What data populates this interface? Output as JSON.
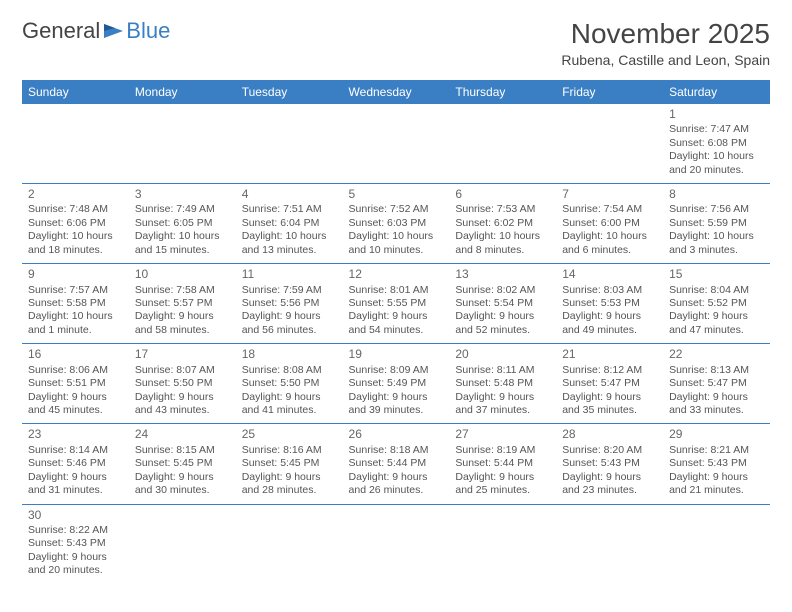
{
  "brand": {
    "part1": "General",
    "part2": "Blue"
  },
  "title": {
    "month": "November 2025",
    "location": "Rubena, Castille and Leon, Spain"
  },
  "dayHeaders": [
    "Sunday",
    "Monday",
    "Tuesday",
    "Wednesday",
    "Thursday",
    "Friday",
    "Saturday"
  ],
  "colors": {
    "headerBg": "#3a7fc4",
    "headerText": "#ffffff",
    "ruleColor": "#3a7fc4",
    "bodyText": "#555555",
    "titleText": "#444444"
  },
  "weeks": [
    [
      {
        "day": "",
        "sunrise": "",
        "sunset": "",
        "daylight": ""
      },
      {
        "day": "",
        "sunrise": "",
        "sunset": "",
        "daylight": ""
      },
      {
        "day": "",
        "sunrise": "",
        "sunset": "",
        "daylight": ""
      },
      {
        "day": "",
        "sunrise": "",
        "sunset": "",
        "daylight": ""
      },
      {
        "day": "",
        "sunrise": "",
        "sunset": "",
        "daylight": ""
      },
      {
        "day": "",
        "sunrise": "",
        "sunset": "",
        "daylight": ""
      },
      {
        "day": "1",
        "sunrise": "Sunrise: 7:47 AM",
        "sunset": "Sunset: 6:08 PM",
        "daylight": "Daylight: 10 hours and 20 minutes."
      }
    ],
    [
      {
        "day": "2",
        "sunrise": "Sunrise: 7:48 AM",
        "sunset": "Sunset: 6:06 PM",
        "daylight": "Daylight: 10 hours and 18 minutes."
      },
      {
        "day": "3",
        "sunrise": "Sunrise: 7:49 AM",
        "sunset": "Sunset: 6:05 PM",
        "daylight": "Daylight: 10 hours and 15 minutes."
      },
      {
        "day": "4",
        "sunrise": "Sunrise: 7:51 AM",
        "sunset": "Sunset: 6:04 PM",
        "daylight": "Daylight: 10 hours and 13 minutes."
      },
      {
        "day": "5",
        "sunrise": "Sunrise: 7:52 AM",
        "sunset": "Sunset: 6:03 PM",
        "daylight": "Daylight: 10 hours and 10 minutes."
      },
      {
        "day": "6",
        "sunrise": "Sunrise: 7:53 AM",
        "sunset": "Sunset: 6:02 PM",
        "daylight": "Daylight: 10 hours and 8 minutes."
      },
      {
        "day": "7",
        "sunrise": "Sunrise: 7:54 AM",
        "sunset": "Sunset: 6:00 PM",
        "daylight": "Daylight: 10 hours and 6 minutes."
      },
      {
        "day": "8",
        "sunrise": "Sunrise: 7:56 AM",
        "sunset": "Sunset: 5:59 PM",
        "daylight": "Daylight: 10 hours and 3 minutes."
      }
    ],
    [
      {
        "day": "9",
        "sunrise": "Sunrise: 7:57 AM",
        "sunset": "Sunset: 5:58 PM",
        "daylight": "Daylight: 10 hours and 1 minute."
      },
      {
        "day": "10",
        "sunrise": "Sunrise: 7:58 AM",
        "sunset": "Sunset: 5:57 PM",
        "daylight": "Daylight: 9 hours and 58 minutes."
      },
      {
        "day": "11",
        "sunrise": "Sunrise: 7:59 AM",
        "sunset": "Sunset: 5:56 PM",
        "daylight": "Daylight: 9 hours and 56 minutes."
      },
      {
        "day": "12",
        "sunrise": "Sunrise: 8:01 AM",
        "sunset": "Sunset: 5:55 PM",
        "daylight": "Daylight: 9 hours and 54 minutes."
      },
      {
        "day": "13",
        "sunrise": "Sunrise: 8:02 AM",
        "sunset": "Sunset: 5:54 PM",
        "daylight": "Daylight: 9 hours and 52 minutes."
      },
      {
        "day": "14",
        "sunrise": "Sunrise: 8:03 AM",
        "sunset": "Sunset: 5:53 PM",
        "daylight": "Daylight: 9 hours and 49 minutes."
      },
      {
        "day": "15",
        "sunrise": "Sunrise: 8:04 AM",
        "sunset": "Sunset: 5:52 PM",
        "daylight": "Daylight: 9 hours and 47 minutes."
      }
    ],
    [
      {
        "day": "16",
        "sunrise": "Sunrise: 8:06 AM",
        "sunset": "Sunset: 5:51 PM",
        "daylight": "Daylight: 9 hours and 45 minutes."
      },
      {
        "day": "17",
        "sunrise": "Sunrise: 8:07 AM",
        "sunset": "Sunset: 5:50 PM",
        "daylight": "Daylight: 9 hours and 43 minutes."
      },
      {
        "day": "18",
        "sunrise": "Sunrise: 8:08 AM",
        "sunset": "Sunset: 5:50 PM",
        "daylight": "Daylight: 9 hours and 41 minutes."
      },
      {
        "day": "19",
        "sunrise": "Sunrise: 8:09 AM",
        "sunset": "Sunset: 5:49 PM",
        "daylight": "Daylight: 9 hours and 39 minutes."
      },
      {
        "day": "20",
        "sunrise": "Sunrise: 8:11 AM",
        "sunset": "Sunset: 5:48 PM",
        "daylight": "Daylight: 9 hours and 37 minutes."
      },
      {
        "day": "21",
        "sunrise": "Sunrise: 8:12 AM",
        "sunset": "Sunset: 5:47 PM",
        "daylight": "Daylight: 9 hours and 35 minutes."
      },
      {
        "day": "22",
        "sunrise": "Sunrise: 8:13 AM",
        "sunset": "Sunset: 5:47 PM",
        "daylight": "Daylight: 9 hours and 33 minutes."
      }
    ],
    [
      {
        "day": "23",
        "sunrise": "Sunrise: 8:14 AM",
        "sunset": "Sunset: 5:46 PM",
        "daylight": "Daylight: 9 hours and 31 minutes."
      },
      {
        "day": "24",
        "sunrise": "Sunrise: 8:15 AM",
        "sunset": "Sunset: 5:45 PM",
        "daylight": "Daylight: 9 hours and 30 minutes."
      },
      {
        "day": "25",
        "sunrise": "Sunrise: 8:16 AM",
        "sunset": "Sunset: 5:45 PM",
        "daylight": "Daylight: 9 hours and 28 minutes."
      },
      {
        "day": "26",
        "sunrise": "Sunrise: 8:18 AM",
        "sunset": "Sunset: 5:44 PM",
        "daylight": "Daylight: 9 hours and 26 minutes."
      },
      {
        "day": "27",
        "sunrise": "Sunrise: 8:19 AM",
        "sunset": "Sunset: 5:44 PM",
        "daylight": "Daylight: 9 hours and 25 minutes."
      },
      {
        "day": "28",
        "sunrise": "Sunrise: 8:20 AM",
        "sunset": "Sunset: 5:43 PM",
        "daylight": "Daylight: 9 hours and 23 minutes."
      },
      {
        "day": "29",
        "sunrise": "Sunrise: 8:21 AM",
        "sunset": "Sunset: 5:43 PM",
        "daylight": "Daylight: 9 hours and 21 minutes."
      }
    ],
    [
      {
        "day": "30",
        "sunrise": "Sunrise: 8:22 AM",
        "sunset": "Sunset: 5:43 PM",
        "daylight": "Daylight: 9 hours and 20 minutes."
      },
      {
        "day": "",
        "sunrise": "",
        "sunset": "",
        "daylight": ""
      },
      {
        "day": "",
        "sunrise": "",
        "sunset": "",
        "daylight": ""
      },
      {
        "day": "",
        "sunrise": "",
        "sunset": "",
        "daylight": ""
      },
      {
        "day": "",
        "sunrise": "",
        "sunset": "",
        "daylight": ""
      },
      {
        "day": "",
        "sunrise": "",
        "sunset": "",
        "daylight": ""
      },
      {
        "day": "",
        "sunrise": "",
        "sunset": "",
        "daylight": ""
      }
    ]
  ]
}
